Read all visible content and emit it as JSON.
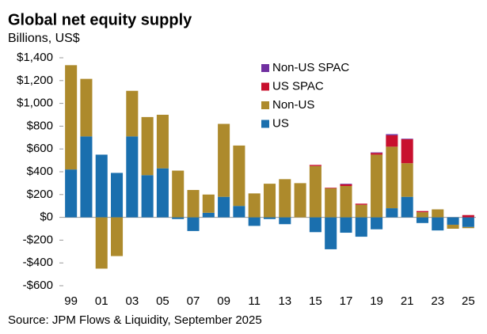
{
  "chart_data": {
    "type": "stacked-bar",
    "title": "Global net equity supply",
    "subtitle": "Billions, US$",
    "source": "Source: JPM Flows & Liquidity, September 2025",
    "categories": [
      "99",
      null,
      "01",
      null,
      "03",
      null,
      "05",
      null,
      "07",
      null,
      "09",
      null,
      "11",
      null,
      "13",
      null,
      "15",
      null,
      "17",
      null,
      "19",
      null,
      "21",
      null,
      "23",
      null,
      "25"
    ],
    "series": [
      {
        "name": "US",
        "color": "#1a6fae",
        "values": [
          420,
          710,
          550,
          390,
          710,
          370,
          430,
          -15,
          -120,
          40,
          180,
          100,
          -75,
          -15,
          -60,
          0,
          -130,
          -280,
          -135,
          -170,
          -105,
          80,
          180,
          -50,
          -115,
          -65,
          -85
        ]
      },
      {
        "name": "Non-US",
        "color": "#ad8a2c",
        "values": [
          915,
          505,
          -450,
          -340,
          400,
          510,
          470,
          410,
          240,
          160,
          640,
          530,
          210,
          295,
          335,
          300,
          450,
          255,
          275,
          110,
          550,
          540,
          295,
          45,
          70,
          -35,
          -10
        ]
      },
      {
        "name": "US SPAC",
        "color": "#c8102e",
        "values": [
          0,
          0,
          0,
          0,
          0,
          0,
          0,
          0,
          0,
          0,
          0,
          0,
          0,
          0,
          0,
          0,
          10,
          5,
          15,
          10,
          15,
          100,
          210,
          10,
          0,
          0,
          20
        ]
      },
      {
        "name": "Non-US SPAC",
        "color": "#7030a0",
        "values": [
          0,
          0,
          0,
          0,
          0,
          0,
          0,
          0,
          0,
          0,
          0,
          0,
          0,
          0,
          0,
          0,
          0,
          0,
          5,
          0,
          5,
          10,
          5,
          0,
          0,
          0,
          0
        ]
      }
    ],
    "ylim": [
      -600,
      1400
    ],
    "yticks": [
      {
        "value": -600,
        "label": "-$600"
      },
      {
        "value": -400,
        "label": "-$400"
      },
      {
        "value": -200,
        "label": "-$200"
      },
      {
        "value": 0,
        "label": "$0"
      },
      {
        "value": 200,
        "label": "$200"
      },
      {
        "value": 400,
        "label": "$400"
      },
      {
        "value": 600,
        "label": "$600"
      },
      {
        "value": 800,
        "label": "$800"
      },
      {
        "value": 1000,
        "label": "$1,000"
      },
      {
        "value": 1200,
        "label": "$1,200"
      },
      {
        "value": 1400,
        "label": "$1,400"
      }
    ]
  }
}
